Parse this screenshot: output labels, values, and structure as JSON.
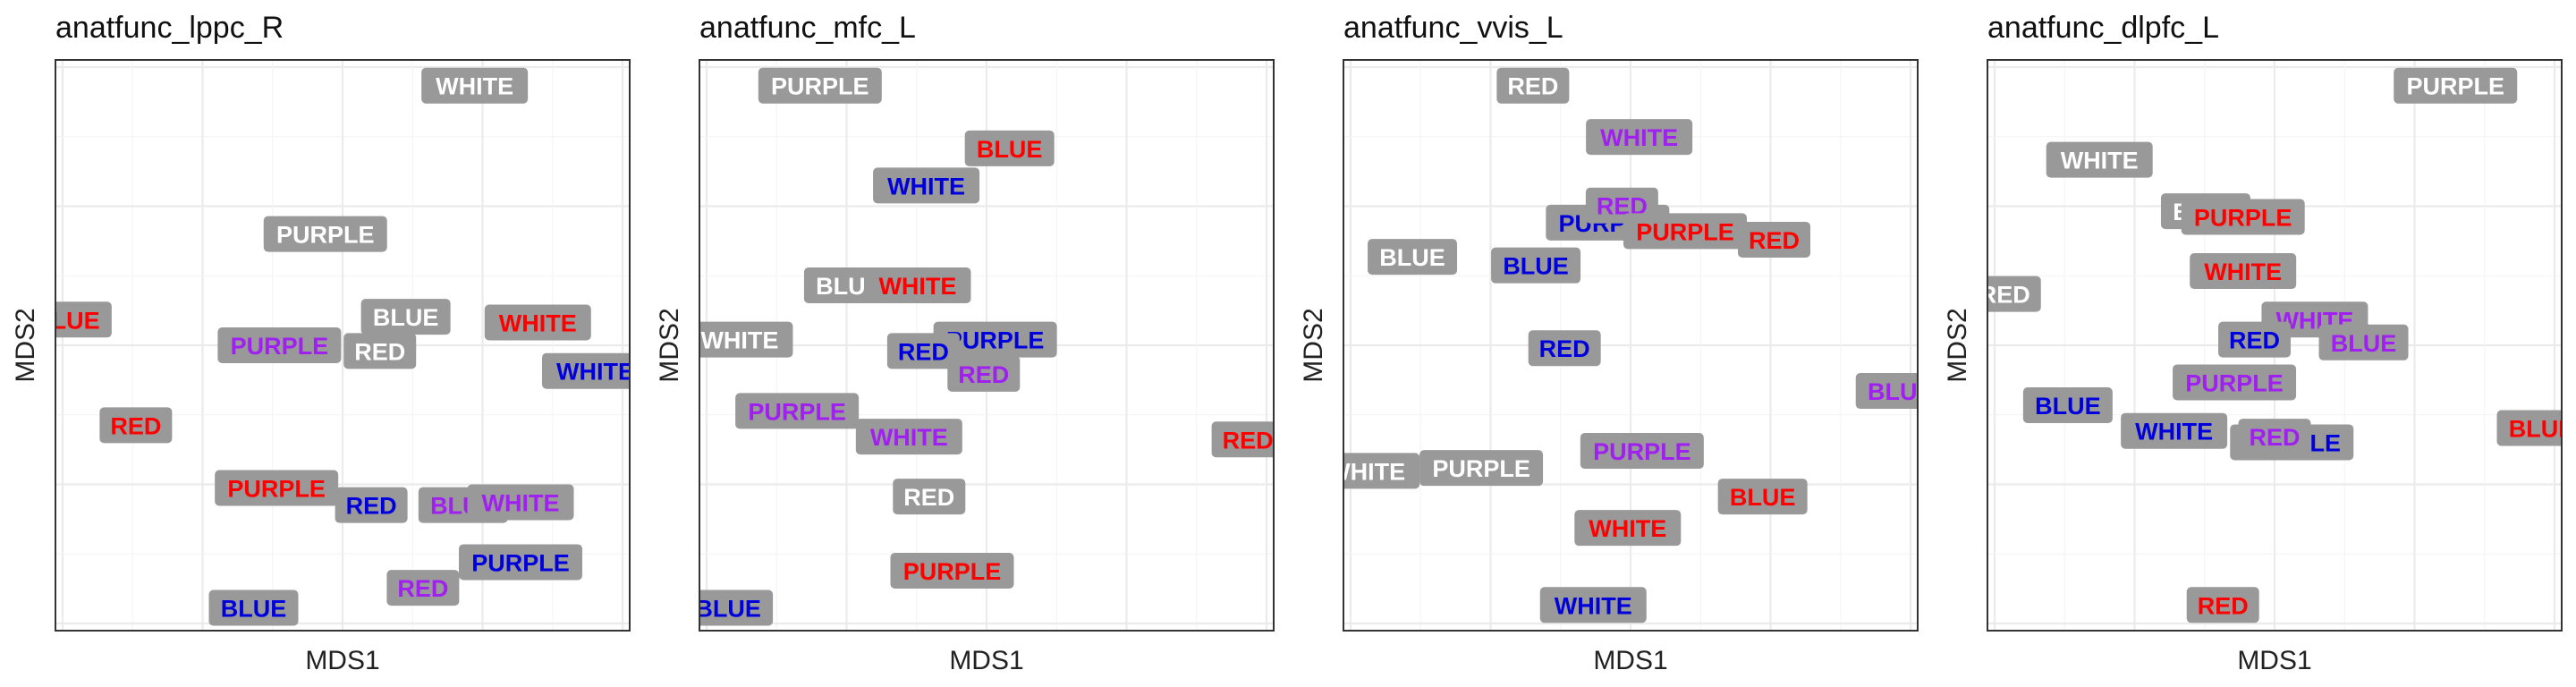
{
  "colors": {
    "RED": "#ff0000",
    "BLUE": "#0000dd",
    "PURPLE": "#a020f0",
    "WHITE": "#ffffff",
    "label_bg": "#999999",
    "grid": "#ebebeb",
    "border": "#333333"
  },
  "chart_data": [
    {
      "type": "scatter",
      "title": "anatfunc_lppc_R",
      "xlabel": "MDS1",
      "ylabel": "MDS2",
      "xlim": [
        0,
        1
      ],
      "ylim": [
        0,
        1
      ],
      "grid": true,
      "points": [
        {
          "label": "WHITE",
          "text_color": "WHITE",
          "x": 0.73,
          "y": 0.955
        },
        {
          "label": "PURPLE",
          "text_color": "WHITE",
          "x": 0.47,
          "y": 0.695
        },
        {
          "label": "BLUE",
          "text_color": "RED",
          "x": 0.02,
          "y": 0.545
        },
        {
          "label": "BLUE",
          "text_color": "WHITE",
          "x": 0.61,
          "y": 0.55
        },
        {
          "label": "WHITE",
          "text_color": "RED",
          "x": 0.84,
          "y": 0.54
        },
        {
          "label": "PURPLE",
          "text_color": "PURPLE",
          "x": 0.39,
          "y": 0.5
        },
        {
          "label": "RED",
          "text_color": "WHITE",
          "x": 0.565,
          "y": 0.49
        },
        {
          "label": "WHITE",
          "text_color": "BLUE",
          "x": 0.94,
          "y": 0.455
        },
        {
          "label": "RED",
          "text_color": "RED",
          "x": 0.14,
          "y": 0.36
        },
        {
          "label": "PURPLE",
          "text_color": "RED",
          "x": 0.385,
          "y": 0.25
        },
        {
          "label": "RED",
          "text_color": "BLUE",
          "x": 0.55,
          "y": 0.22
        },
        {
          "label": "BLUE",
          "text_color": "PURPLE",
          "x": 0.71,
          "y": 0.22
        },
        {
          "label": "WHITE",
          "text_color": "PURPLE",
          "x": 0.81,
          "y": 0.225
        },
        {
          "label": "PURPLE",
          "text_color": "BLUE",
          "x": 0.81,
          "y": 0.12
        },
        {
          "label": "RED",
          "text_color": "PURPLE",
          "x": 0.64,
          "y": 0.075
        },
        {
          "label": "BLUE",
          "text_color": "BLUE",
          "x": 0.345,
          "y": 0.04
        }
      ]
    },
    {
      "type": "scatter",
      "title": "anatfunc_mfc_L",
      "xlabel": "MDS1",
      "ylabel": "MDS2",
      "xlim": [
        0,
        1
      ],
      "ylim": [
        0,
        1
      ],
      "grid": true,
      "points": [
        {
          "label": "PURPLE",
          "text_color": "WHITE",
          "x": 0.21,
          "y": 0.955
        },
        {
          "label": "BLUE",
          "text_color": "RED",
          "x": 0.54,
          "y": 0.845
        },
        {
          "label": "WHITE",
          "text_color": "BLUE",
          "x": 0.395,
          "y": 0.78
        },
        {
          "label": "BLUE",
          "text_color": "WHITE",
          "x": 0.26,
          "y": 0.605
        },
        {
          "label": "WHITE",
          "text_color": "RED",
          "x": 0.38,
          "y": 0.605
        },
        {
          "label": "WHITE",
          "text_color": "WHITE",
          "x": 0.07,
          "y": 0.51
        },
        {
          "label": "PURPLE",
          "text_color": "BLUE",
          "x": 0.515,
          "y": 0.51
        },
        {
          "label": "RED",
          "text_color": "BLUE",
          "x": 0.39,
          "y": 0.49
        },
        {
          "label": "RED",
          "text_color": "PURPLE",
          "x": 0.495,
          "y": 0.45
        },
        {
          "label": "PURPLE",
          "text_color": "PURPLE",
          "x": 0.17,
          "y": 0.385
        },
        {
          "label": "WHITE",
          "text_color": "PURPLE",
          "x": 0.365,
          "y": 0.34
        },
        {
          "label": "RED",
          "text_color": "RED",
          "x": 0.955,
          "y": 0.335
        },
        {
          "label": "RED",
          "text_color": "WHITE",
          "x": 0.4,
          "y": 0.235
        },
        {
          "label": "PURPLE",
          "text_color": "RED",
          "x": 0.44,
          "y": 0.105
        },
        {
          "label": "BLUE",
          "text_color": "BLUE",
          "x": 0.05,
          "y": 0.04
        }
      ]
    },
    {
      "type": "scatter",
      "title": "anatfunc_vvis_L",
      "xlabel": "MDS1",
      "ylabel": "MDS2",
      "xlim": [
        0,
        1
      ],
      "ylim": [
        0,
        1
      ],
      "grid": true,
      "points": [
        {
          "label": "RED",
          "text_color": "WHITE",
          "x": 0.33,
          "y": 0.955
        },
        {
          "label": "WHITE",
          "text_color": "PURPLE",
          "x": 0.515,
          "y": 0.865
        },
        {
          "label": "PURPLE",
          "text_color": "BLUE",
          "x": 0.46,
          "y": 0.715
        },
        {
          "label": "RED",
          "text_color": "PURPLE",
          "x": 0.485,
          "y": 0.745
        },
        {
          "label": "PURPLE",
          "text_color": "RED",
          "x": 0.595,
          "y": 0.7
        },
        {
          "label": "RED",
          "text_color": "RED",
          "x": 0.75,
          "y": 0.685
        },
        {
          "label": "BLUE",
          "text_color": "WHITE",
          "x": 0.12,
          "y": 0.655
        },
        {
          "label": "BLUE",
          "text_color": "BLUE",
          "x": 0.335,
          "y": 0.64
        },
        {
          "label": "RED",
          "text_color": "BLUE",
          "x": 0.385,
          "y": 0.495
        },
        {
          "label": "BLUE",
          "text_color": "PURPLE",
          "x": 0.97,
          "y": 0.42
        },
        {
          "label": "PURPLE",
          "text_color": "PURPLE",
          "x": 0.52,
          "y": 0.315
        },
        {
          "label": "WHITE",
          "text_color": "WHITE",
          "x": 0.04,
          "y": 0.28
        },
        {
          "label": "PURPLE",
          "text_color": "WHITE",
          "x": 0.24,
          "y": 0.285
        },
        {
          "label": "BLUE",
          "text_color": "RED",
          "x": 0.73,
          "y": 0.235
        },
        {
          "label": "WHITE",
          "text_color": "RED",
          "x": 0.495,
          "y": 0.18
        },
        {
          "label": "WHITE",
          "text_color": "BLUE",
          "x": 0.435,
          "y": 0.045
        }
      ]
    },
    {
      "type": "scatter",
      "title": "anatfunc_dlpfc_L",
      "xlabel": "MDS1",
      "ylabel": "MDS2",
      "xlim": [
        0,
        1
      ],
      "ylim": [
        0,
        1
      ],
      "grid": true,
      "points": [
        {
          "label": "PURPLE",
          "text_color": "WHITE",
          "x": 0.815,
          "y": 0.955
        },
        {
          "label": "WHITE",
          "text_color": "WHITE",
          "x": 0.195,
          "y": 0.825
        },
        {
          "label": "BLUE",
          "text_color": "WHITE",
          "x": 0.38,
          "y": 0.735
        },
        {
          "label": "PURPLE",
          "text_color": "RED",
          "x": 0.445,
          "y": 0.725
        },
        {
          "label": "WHITE",
          "text_color": "RED",
          "x": 0.445,
          "y": 0.63
        },
        {
          "label": "RED",
          "text_color": "WHITE",
          "x": 0.03,
          "y": 0.59
        },
        {
          "label": "WHITE",
          "text_color": "PURPLE",
          "x": 0.57,
          "y": 0.545
        },
        {
          "label": "RED",
          "text_color": "BLUE",
          "x": 0.465,
          "y": 0.51
        },
        {
          "label": "BLUE",
          "text_color": "PURPLE",
          "x": 0.655,
          "y": 0.505
        },
        {
          "label": "PURPLE",
          "text_color": "PURPLE",
          "x": 0.43,
          "y": 0.435
        },
        {
          "label": "BLUE",
          "text_color": "BLUE",
          "x": 0.14,
          "y": 0.395
        },
        {
          "label": "WHITE",
          "text_color": "BLUE",
          "x": 0.325,
          "y": 0.35
        },
        {
          "label": "PURPLE",
          "text_color": "BLUE",
          "x": 0.53,
          "y": 0.33
        },
        {
          "label": "RED",
          "text_color": "PURPLE",
          "x": 0.5,
          "y": 0.34
        },
        {
          "label": "BLUE",
          "text_color": "RED",
          "x": 0.965,
          "y": 0.355
        },
        {
          "label": "RED",
          "text_color": "RED",
          "x": 0.41,
          "y": 0.045
        }
      ]
    }
  ]
}
